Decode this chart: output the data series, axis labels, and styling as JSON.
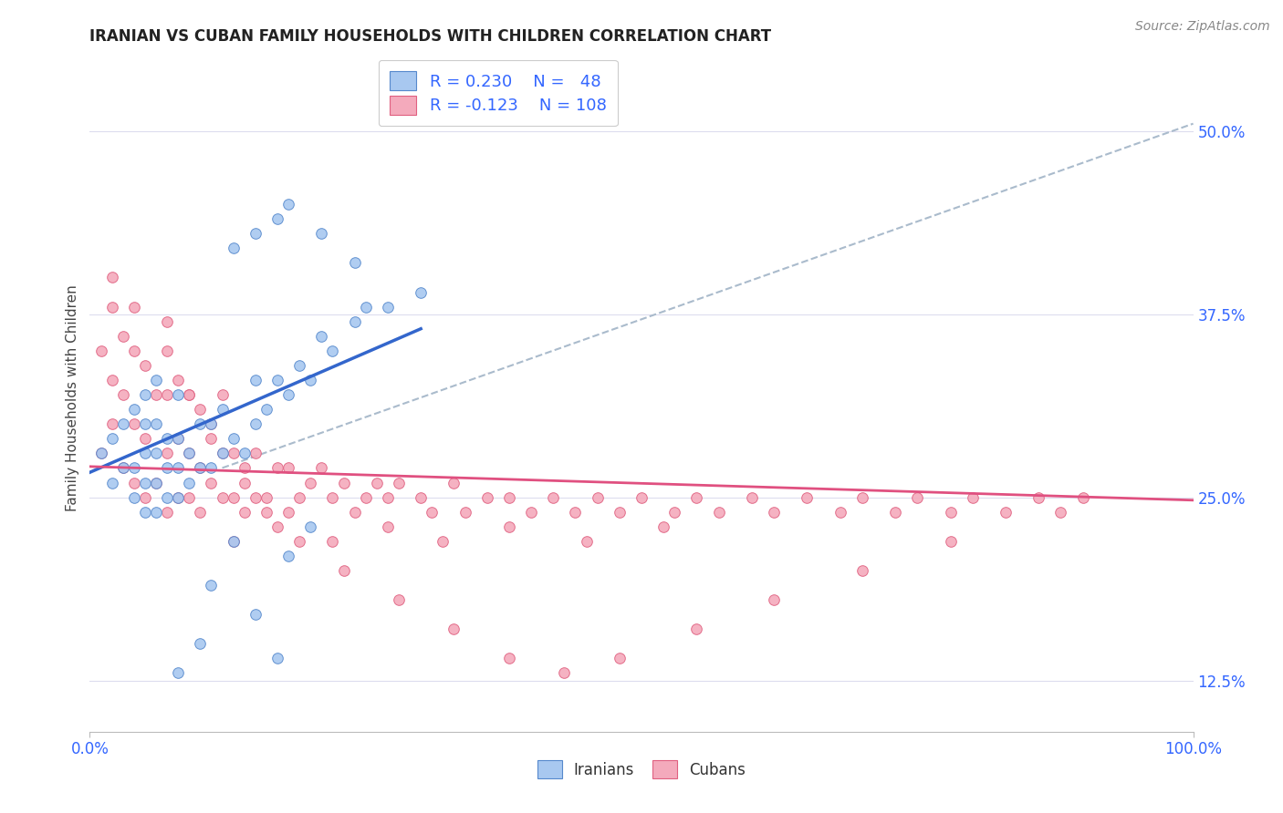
{
  "title": "IRANIAN VS CUBAN FAMILY HOUSEHOLDS WITH CHILDREN CORRELATION CHART",
  "source": "Source: ZipAtlas.com",
  "ylabel": "Family Households with Children",
  "ytick_vals": [
    0.125,
    0.25,
    0.375,
    0.5
  ],
  "ytick_labels": [
    "12.5%",
    "25.0%",
    "37.5%",
    "50.0%"
  ],
  "xtick_vals": [
    0.0,
    1.0
  ],
  "xtick_labels": [
    "0.0%",
    "100.0%"
  ],
  "xlim": [
    0.0,
    1.0
  ],
  "ylim": [
    0.09,
    0.545
  ],
  "iranian_color": "#A8C8F0",
  "cuban_color": "#F4AABC",
  "iranian_edge": "#5588CC",
  "cuban_edge": "#E06080",
  "trend_iranian_color": "#3366CC",
  "trend_cuban_color": "#E05080",
  "trend_dashed_color": "#AABBCC",
  "tick_color": "#3366FF",
  "legend_text_color": "#3366FF",
  "background_color": "#FFFFFF",
  "grid_color": "#DDDDEE",
  "iranians_x": [
    0.01,
    0.02,
    0.02,
    0.03,
    0.03,
    0.04,
    0.04,
    0.04,
    0.05,
    0.05,
    0.05,
    0.05,
    0.05,
    0.06,
    0.06,
    0.06,
    0.06,
    0.06,
    0.07,
    0.07,
    0.07,
    0.08,
    0.08,
    0.08,
    0.08,
    0.09,
    0.09,
    0.1,
    0.1,
    0.11,
    0.11,
    0.12,
    0.12,
    0.13,
    0.14,
    0.15,
    0.15,
    0.16,
    0.17,
    0.18,
    0.19,
    0.2,
    0.21,
    0.22,
    0.24,
    0.25,
    0.27,
    0.3
  ],
  "iranians_y": [
    0.28,
    0.26,
    0.29,
    0.27,
    0.3,
    0.25,
    0.27,
    0.31,
    0.24,
    0.26,
    0.28,
    0.3,
    0.32,
    0.24,
    0.26,
    0.28,
    0.3,
    0.33,
    0.25,
    0.27,
    0.29,
    0.25,
    0.27,
    0.29,
    0.32,
    0.26,
    0.28,
    0.27,
    0.3,
    0.27,
    0.3,
    0.28,
    0.31,
    0.29,
    0.28,
    0.3,
    0.33,
    0.31,
    0.33,
    0.32,
    0.34,
    0.33,
    0.36,
    0.35,
    0.37,
    0.38,
    0.38,
    0.39
  ],
  "iranians_y_low": [
    0.13,
    0.15,
    0.19,
    0.22,
    0.17,
    0.14,
    0.21,
    0.23
  ],
  "iranians_x_low": [
    0.08,
    0.1,
    0.11,
    0.13,
    0.15,
    0.17,
    0.18,
    0.2
  ],
  "iranians_y_high": [
    0.42,
    0.43,
    0.44,
    0.45,
    0.43,
    0.41
  ],
  "iranians_x_high": [
    0.13,
    0.15,
    0.17,
    0.18,
    0.21,
    0.24
  ],
  "cubans_x": [
    0.01,
    0.01,
    0.02,
    0.02,
    0.02,
    0.03,
    0.03,
    0.03,
    0.04,
    0.04,
    0.04,
    0.05,
    0.05,
    0.05,
    0.06,
    0.06,
    0.07,
    0.07,
    0.07,
    0.07,
    0.08,
    0.08,
    0.08,
    0.09,
    0.09,
    0.09,
    0.1,
    0.1,
    0.1,
    0.11,
    0.11,
    0.12,
    0.12,
    0.12,
    0.13,
    0.13,
    0.14,
    0.14,
    0.15,
    0.15,
    0.16,
    0.17,
    0.18,
    0.18,
    0.19,
    0.2,
    0.21,
    0.22,
    0.23,
    0.24,
    0.25,
    0.26,
    0.27,
    0.28,
    0.3,
    0.31,
    0.33,
    0.34,
    0.36,
    0.38,
    0.4,
    0.42,
    0.44,
    0.46,
    0.48,
    0.5,
    0.53,
    0.55,
    0.57,
    0.6,
    0.62,
    0.65,
    0.68,
    0.7,
    0.73,
    0.75,
    0.78,
    0.8,
    0.83,
    0.86,
    0.88,
    0.9,
    0.13,
    0.17,
    0.22,
    0.27,
    0.32,
    0.38,
    0.45,
    0.52,
    0.02,
    0.04,
    0.07,
    0.09,
    0.11,
    0.14,
    0.16,
    0.19,
    0.23,
    0.28,
    0.33,
    0.38,
    0.43,
    0.48,
    0.55,
    0.62,
    0.7,
    0.78
  ],
  "cubans_y": [
    0.28,
    0.35,
    0.3,
    0.33,
    0.38,
    0.27,
    0.32,
    0.36,
    0.26,
    0.3,
    0.35,
    0.25,
    0.29,
    0.34,
    0.26,
    0.32,
    0.24,
    0.28,
    0.32,
    0.37,
    0.25,
    0.29,
    0.33,
    0.25,
    0.28,
    0.32,
    0.24,
    0.27,
    0.31,
    0.26,
    0.3,
    0.25,
    0.28,
    0.32,
    0.25,
    0.28,
    0.24,
    0.27,
    0.25,
    0.28,
    0.25,
    0.27,
    0.24,
    0.27,
    0.25,
    0.26,
    0.27,
    0.25,
    0.26,
    0.24,
    0.25,
    0.26,
    0.25,
    0.26,
    0.25,
    0.24,
    0.26,
    0.24,
    0.25,
    0.25,
    0.24,
    0.25,
    0.24,
    0.25,
    0.24,
    0.25,
    0.24,
    0.25,
    0.24,
    0.25,
    0.24,
    0.25,
    0.24,
    0.25,
    0.24,
    0.25,
    0.24,
    0.25,
    0.24,
    0.25,
    0.24,
    0.25,
    0.22,
    0.23,
    0.22,
    0.23,
    0.22,
    0.23,
    0.22,
    0.23,
    0.4,
    0.38,
    0.35,
    0.32,
    0.29,
    0.26,
    0.24,
    0.22,
    0.2,
    0.18,
    0.16,
    0.14,
    0.13,
    0.14,
    0.16,
    0.18,
    0.2,
    0.22
  ],
  "iran_trend_x": [
    0.0,
    0.3
  ],
  "iran_trend_y": [
    0.267,
    0.365
  ],
  "cuba_trend_x": [
    0.0,
    1.0
  ],
  "cuba_trend_y": [
    0.271,
    0.248
  ],
  "dashed_trend_x": [
    0.12,
    1.0
  ],
  "dashed_trend_y": [
    0.27,
    0.505
  ]
}
